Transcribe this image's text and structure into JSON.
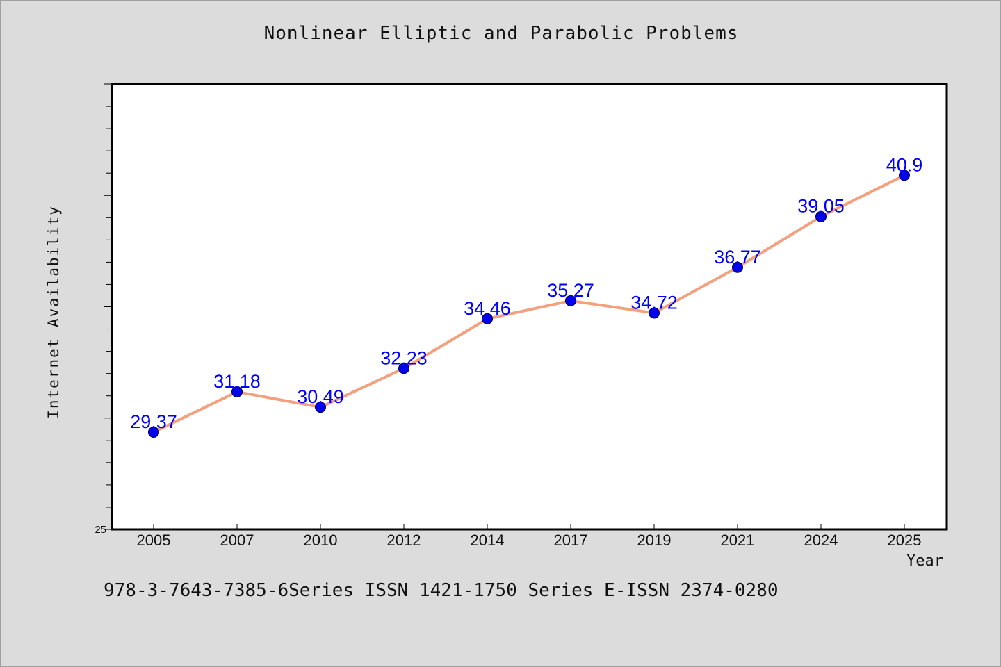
{
  "page": {
    "title": "Nonlinear Elliptic and Parabolic Problems",
    "footer": "978-3-7643-7385-6Series ISSN 1421-1750 Series E-ISSN 2374-0280"
  },
  "colors": {
    "background": "#dcdcdc",
    "plot_background": "#ffffff",
    "line": "#f4a07e",
    "marker": "#0000ee",
    "data_label": "#0000ff"
  },
  "chart_data": {
    "type": "line",
    "title": "Nonlinear Elliptic and Parabolic Problems",
    "xlabel": "Year",
    "ylabel": "Internet Availability",
    "categories": [
      "2005",
      "2007",
      "2010",
      "2012",
      "2014",
      "2017",
      "2019",
      "2021",
      "2024",
      "2025"
    ],
    "series": [
      {
        "values": [
          29.37,
          31.18,
          30.49,
          32.23,
          34.46,
          35.27,
          34.72,
          36.77,
          39.05,
          40.9
        ]
      }
    ],
    "data_labels": [
      "29.37",
      "31.18",
      "30.49",
      "32.23",
      "34.46",
      "35.27",
      "34.72",
      "36.77",
      "39.05",
      "40.9"
    ],
    "ylim": [
      25,
      45
    ],
    "y_tick_labels": [
      "25"
    ],
    "grid": false,
    "legend": "none"
  }
}
